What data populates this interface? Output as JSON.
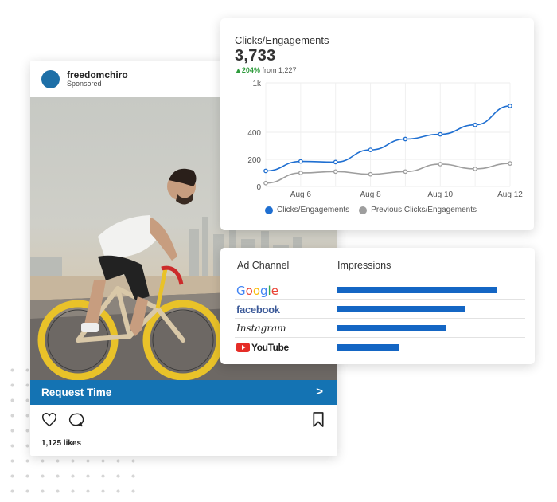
{
  "post": {
    "username": "freedomchiro",
    "sponsored": "Sponsored",
    "cta_label": "Request Time",
    "cta_arrow": ">",
    "likes": "1,125 likes"
  },
  "chart": {
    "title": "Clicks/Engagements",
    "value": "3,733",
    "change": "204%",
    "from": "from 1,227"
  },
  "chart_data": {
    "type": "line",
    "x": [
      "Aug 5",
      "Aug 6",
      "Aug 7",
      "Aug 8",
      "Aug 9",
      "Aug 10",
      "Aug 11",
      "Aug 12"
    ],
    "x_tick_labels": [
      "Aug 6",
      "Aug 8",
      "Aug 10",
      "Aug 12"
    ],
    "y_tick_labels": [
      "0",
      "200",
      "400",
      "1k"
    ],
    "series": [
      {
        "name": "Clicks/Engagements",
        "color": "#1f6fd1",
        "values": [
          115,
          185,
          180,
          270,
          350,
          385,
          490,
          720
        ]
      },
      {
        "name": "Previous Clicks/Engagements",
        "color": "#9e9e9e",
        "values": [
          25,
          100,
          110,
          90,
          110,
          165,
          130,
          170
        ]
      }
    ],
    "grid": true,
    "legend": "bottom"
  },
  "table": {
    "col_channel": "Ad Channel",
    "col_impressions": "Impressions",
    "rows": [
      {
        "channel": "Google",
        "value": 0.88
      },
      {
        "channel": "facebook",
        "value": 0.7
      },
      {
        "channel": "Instagram",
        "value": 0.6
      },
      {
        "channel": "YouTube",
        "value": 0.34
      }
    ]
  },
  "colors": {
    "accent": "#1473b3",
    "bar": "#1466c4",
    "positive": "#2e9b3c"
  }
}
